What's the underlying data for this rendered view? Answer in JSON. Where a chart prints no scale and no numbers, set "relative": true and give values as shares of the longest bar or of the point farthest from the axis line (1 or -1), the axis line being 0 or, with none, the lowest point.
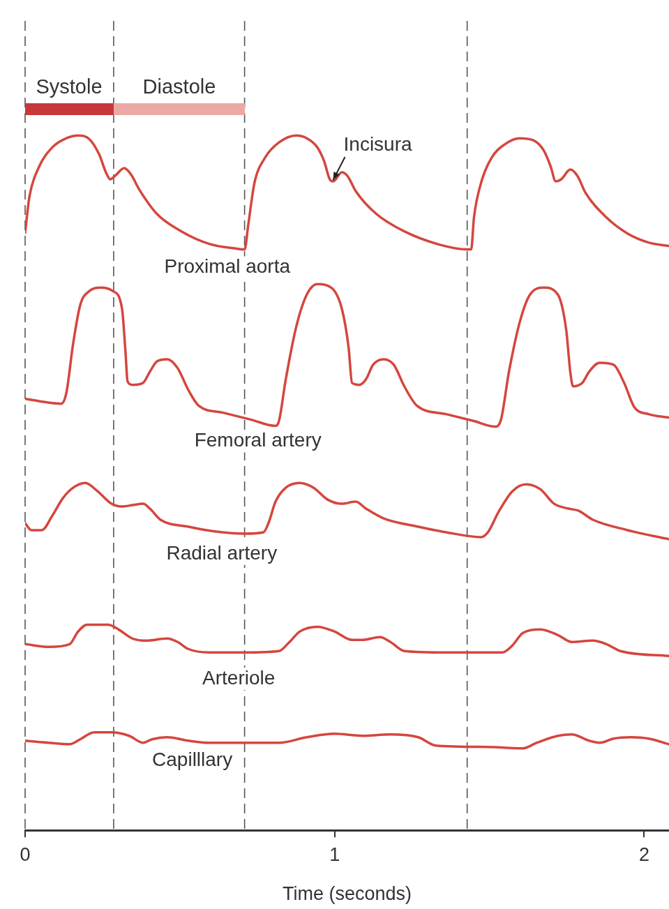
{
  "chart_data": {
    "type": "line",
    "relative": true,
    "xlabel": "Time (seconds)",
    "xlim": [
      0,
      2.08
    ],
    "xticks": [
      0,
      1,
      2
    ],
    "grid": false,
    "legend": false,
    "series": [
      {
        "name": "Proximal aorta",
        "color": "#d4463e",
        "x": [
          0,
          0.014,
          0.043,
          0.088,
          0.133,
          0.171,
          0.207,
          0.239,
          0.261,
          0.275,
          0.291,
          0.32,
          0.342,
          0.369,
          0.426,
          0.505,
          0.595,
          0.685,
          0.709,
          0.721,
          0.741,
          0.775,
          0.82,
          0.876,
          0.91,
          0.944,
          0.966,
          0.984,
          0.995,
          1.023,
          1.041,
          1.068,
          1.135,
          1.225,
          1.338,
          1.428,
          1.441,
          1.45,
          1.473,
          1.507,
          1.552,
          1.597,
          1.642,
          1.676,
          1.698,
          1.714,
          1.732,
          1.761,
          1.784,
          1.811,
          1.878,
          1.946,
          2.014,
          2.079
        ],
        "values": [
          0.86,
          0.912,
          0.953,
          0.983,
          0.996,
          1.0,
          0.995,
          0.973,
          0.947,
          0.937,
          0.942,
          0.953,
          0.944,
          0.922,
          0.887,
          0.862,
          0.844,
          0.837,
          0.836,
          0.872,
          0.932,
          0.968,
          0.99,
          1.0,
          0.996,
          0.983,
          0.963,
          0.937,
          0.934,
          0.947,
          0.942,
          0.92,
          0.887,
          0.862,
          0.843,
          0.836,
          0.836,
          0.882,
          0.932,
          0.968,
          0.988,
          0.996,
          0.993,
          0.978,
          0.955,
          0.934,
          0.937,
          0.951,
          0.942,
          0.917,
          0.882,
          0.859,
          0.846,
          0.841
        ]
      },
      {
        "name": "Femoral artery",
        "color": "#d4463e",
        "x": [
          0,
          0.054,
          0.117,
          0.133,
          0.155,
          0.178,
          0.207,
          0.245,
          0.284,
          0.313,
          0.324,
          0.331,
          0.347,
          0.381,
          0.403,
          0.426,
          0.459,
          0.493,
          0.527,
          0.561,
          0.64,
          0.73,
          0.809,
          0.82,
          0.842,
          0.876,
          0.91,
          0.944,
          0.989,
          1.023,
          1.045,
          1.056,
          1.079,
          1.101,
          1.124,
          1.158,
          1.191,
          1.225,
          1.266,
          1.36,
          1.45,
          1.518,
          1.536,
          1.563,
          1.597,
          1.631,
          1.676,
          1.721,
          1.748,
          1.761,
          1.77,
          1.8,
          1.822,
          1.856,
          1.901,
          1.935,
          1.968,
          2.014,
          2.079
        ],
        "values": [
          0.621,
          0.617,
          0.614,
          0.629,
          0.7,
          0.756,
          0.776,
          0.781,
          0.776,
          0.751,
          0.69,
          0.646,
          0.641,
          0.644,
          0.66,
          0.675,
          0.678,
          0.665,
          0.634,
          0.611,
          0.601,
          0.591,
          0.582,
          0.589,
          0.649,
          0.725,
          0.771,
          0.786,
          0.781,
          0.751,
          0.695,
          0.644,
          0.641,
          0.649,
          0.67,
          0.678,
          0.67,
          0.639,
          0.611,
          0.599,
          0.589,
          0.581,
          0.589,
          0.66,
          0.73,
          0.771,
          0.781,
          0.771,
          0.72,
          0.66,
          0.639,
          0.644,
          0.66,
          0.673,
          0.67,
          0.644,
          0.609,
          0.599,
          0.594
        ]
      },
      {
        "name": "Radial artery",
        "color": "#d4463e",
        "x": [
          0,
          0.02,
          0.054,
          0.088,
          0.122,
          0.155,
          0.194,
          0.234,
          0.279,
          0.313,
          0.347,
          0.381,
          0.403,
          0.437,
          0.527,
          0.617,
          0.709,
          0.77,
          0.786,
          0.809,
          0.842,
          0.887,
          0.932,
          0.977,
          1.023,
          1.068,
          1.101,
          1.158,
          1.27,
          1.36,
          1.473,
          1.495,
          1.529,
          1.574,
          1.619,
          1.664,
          1.709,
          1.755,
          1.788,
          1.834,
          1.946,
          2.079
        ],
        "values": [
          0.442,
          0.432,
          0.432,
          0.453,
          0.478,
          0.493,
          0.5,
          0.488,
          0.47,
          0.466,
          0.468,
          0.47,
          0.463,
          0.447,
          0.437,
          0.43,
          0.427,
          0.429,
          0.442,
          0.473,
          0.493,
          0.5,
          0.493,
          0.476,
          0.47,
          0.473,
          0.463,
          0.449,
          0.437,
          0.429,
          0.422,
          0.429,
          0.458,
          0.488,
          0.498,
          0.491,
          0.47,
          0.463,
          0.46,
          0.447,
          0.432,
          0.419
        ]
      },
      {
        "name": "Arteriole",
        "color": "#d4463e",
        "x": [
          0,
          0.077,
          0.144,
          0.171,
          0.2,
          0.268,
          0.302,
          0.347,
          0.392,
          0.459,
          0.493,
          0.527,
          0.595,
          0.709,
          0.82,
          0.854,
          0.887,
          0.944,
          1.0,
          1.056,
          1.09,
          1.146,
          1.18,
          1.225,
          1.36,
          1.541,
          1.574,
          1.608,
          1.664,
          1.721,
          1.766,
          1.833,
          1.878,
          1.923,
          2.079
        ],
        "values": [
          0.268,
          0.264,
          0.268,
          0.286,
          0.296,
          0.296,
          0.289,
          0.276,
          0.273,
          0.276,
          0.271,
          0.261,
          0.256,
          0.256,
          0.258,
          0.271,
          0.286,
          0.293,
          0.286,
          0.274,
          0.274,
          0.278,
          0.271,
          0.258,
          0.256,
          0.256,
          0.266,
          0.284,
          0.289,
          0.281,
          0.271,
          0.273,
          0.268,
          0.258,
          0.251
        ]
      },
      {
        "name": "Capilllary",
        "color": "#d4463e",
        "x": [
          0,
          0.077,
          0.144,
          0.178,
          0.223,
          0.279,
          0.336,
          0.381,
          0.41,
          0.459,
          0.527,
          0.595,
          0.82,
          0.91,
          1.0,
          1.09,
          1.18,
          1.27,
          1.327,
          1.495,
          1.608,
          1.653,
          1.721,
          1.766,
          1.822,
          1.856,
          1.901,
          1.957,
          2.014,
          2.079
        ],
        "values": [
          0.129,
          0.126,
          0.124,
          0.131,
          0.141,
          0.141,
          0.136,
          0.126,
          0.131,
          0.134,
          0.129,
          0.126,
          0.126,
          0.134,
          0.139,
          0.136,
          0.138,
          0.134,
          0.122,
          0.12,
          0.118,
          0.126,
          0.136,
          0.138,
          0.129,
          0.126,
          0.132,
          0.134,
          0.132,
          0.124
        ]
      }
    ],
    "ref_lines": [
      {
        "axis": "x",
        "value": 0,
        "color": "#555555",
        "line_style": "dashed"
      },
      {
        "axis": "x",
        "value": 0.286,
        "color": "#555555",
        "line_style": "dashed"
      },
      {
        "axis": "x",
        "value": 0.709,
        "color": "#555555",
        "line_style": "dashed"
      },
      {
        "axis": "x",
        "value": 1.428,
        "color": "#555555",
        "line_style": "dashed"
      }
    ],
    "annotations": [
      "Systole",
      "Diastole",
      {
        "text": "Incisura",
        "x": 0.995,
        "y": 0.934
      }
    ]
  }
}
